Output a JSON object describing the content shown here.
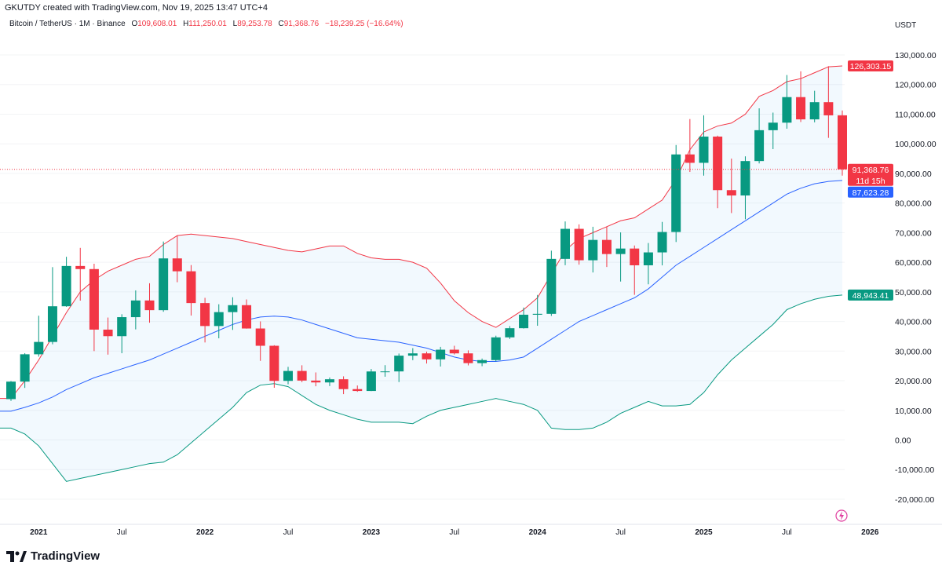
{
  "header": {
    "created": "GKUTDY created with TradingView.com, Nov 19, 2025 13:47 UTC+4",
    "symbol": "Bitcoin / TetherUS · 1M · Binance",
    "open_label": "O",
    "open": "109,608.01",
    "high_label": "H",
    "high": "111,250.01",
    "low_label": "L",
    "low": "89,253.78",
    "close_label": "C",
    "close": "91,368.76",
    "change": "−18,239.25 (−16.64%)"
  },
  "currency": "USDT",
  "brand": "TradingView",
  "colors": {
    "up": "#089981",
    "down": "#F23645",
    "upper_band": "#F23645",
    "basis": "#2962FF",
    "lower_band": "#089981",
    "band_fill": "#2196F3"
  },
  "price_labels": {
    "upper": "126,303.15",
    "last": "91,368.76",
    "countdown": "11d 15h",
    "basis": "87,623.28",
    "lower": "48,943.41"
  },
  "chart_data": {
    "type": "candlestick",
    "interval": "1M",
    "ylim": [
      -25000,
      135000
    ],
    "y_ticks": [
      "130,000.00",
      "120,000.00",
      "110,000.00",
      "100,000.00",
      "90,000.00",
      "80,000.00",
      "70,000.00",
      "60,000.00",
      "50,000.00",
      "40,000.00",
      "30,000.00",
      "20,000.00",
      "10,000.00",
      "0.00",
      "-10,000.00",
      "-20,000.00"
    ],
    "x_ticks": [
      {
        "label": "2021",
        "month": "2021-01"
      },
      {
        "label": "Jul",
        "month": "2021-07"
      },
      {
        "label": "2022",
        "month": "2022-01"
      },
      {
        "label": "Jul",
        "month": "2022-07"
      },
      {
        "label": "2023",
        "month": "2023-01"
      },
      {
        "label": "Jul",
        "month": "2023-07"
      },
      {
        "label": "2024",
        "month": "2024-01"
      },
      {
        "label": "Jul",
        "month": "2024-07"
      },
      {
        "label": "2025",
        "month": "2025-01"
      },
      {
        "label": "Jul",
        "month": "2025-07"
      },
      {
        "label": "2026",
        "month": "2026-01"
      }
    ],
    "months": [
      "2020-11",
      "2020-12",
      "2021-01",
      "2021-02",
      "2021-03",
      "2021-04",
      "2021-05",
      "2021-06",
      "2021-07",
      "2021-08",
      "2021-09",
      "2021-10",
      "2021-11",
      "2021-12",
      "2022-01",
      "2022-02",
      "2022-03",
      "2022-04",
      "2022-05",
      "2022-06",
      "2022-07",
      "2022-08",
      "2022-09",
      "2022-10",
      "2022-11",
      "2022-12",
      "2023-01",
      "2023-02",
      "2023-03",
      "2023-04",
      "2023-05",
      "2023-06",
      "2023-07",
      "2023-08",
      "2023-09",
      "2023-10",
      "2023-11",
      "2023-12",
      "2024-01",
      "2024-02",
      "2024-03",
      "2024-04",
      "2024-05",
      "2024-06",
      "2024-07",
      "2024-08",
      "2024-09",
      "2024-10",
      "2024-11",
      "2024-12",
      "2025-01",
      "2025-02",
      "2025-03",
      "2025-04",
      "2025-05",
      "2025-06",
      "2025-07",
      "2025-08",
      "2025-09",
      "2025-10",
      "2025-11"
    ],
    "ohlc": [
      [
        13791,
        19863,
        13195,
        19695
      ],
      [
        19695,
        29300,
        17572,
        28923
      ],
      [
        28923,
        41950,
        28130,
        33092
      ],
      [
        33092,
        58352,
        32296,
        45135
      ],
      [
        45134,
        61844,
        44950,
        58740
      ],
      [
        58739,
        64854,
        47044,
        57694
      ],
      [
        57697,
        59500,
        30000,
        37253
      ],
      [
        37253,
        41330,
        28805,
        35045
      ],
      [
        35045,
        42448,
        29278,
        41461
      ],
      [
        41461,
        50500,
        37332,
        47100
      ],
      [
        47100,
        52920,
        39600,
        43824
      ],
      [
        43820,
        67000,
        43283,
        61299
      ],
      [
        61300,
        69000,
        53256,
        56950
      ],
      [
        56950,
        59053,
        42000,
        46216
      ],
      [
        46216,
        47990,
        32917,
        38466
      ],
      [
        38466,
        45821,
        34322,
        43160
      ],
      [
        43160,
        48189,
        37155,
        45510
      ],
      [
        45510,
        47444,
        37578,
        37630
      ],
      [
        37630,
        40023,
        26700,
        31801
      ],
      [
        31801,
        31982,
        17622,
        19942
      ],
      [
        19942,
        24668,
        18782,
        23293
      ],
      [
        23296,
        25211,
        19520,
        20050
      ],
      [
        20048,
        22799,
        18125,
        19422
      ],
      [
        19422,
        21085,
        18190,
        20490
      ],
      [
        20491,
        21480,
        15476,
        17164
      ],
      [
        17165,
        18387,
        16256,
        16542
      ],
      [
        16542,
        23960,
        16499,
        23125
      ],
      [
        23125,
        25250,
        21351,
        23141
      ],
      [
        23141,
        29184,
        19549,
        28465
      ],
      [
        28465,
        31000,
        26942,
        29233
      ],
      [
        29233,
        29820,
        25811,
        27210
      ],
      [
        27210,
        31431,
        24800,
        30472
      ],
      [
        30471,
        31804,
        28861,
        29232
      ],
      [
        29232,
        30244,
        25166,
        25941
      ],
      [
        25941,
        27483,
        24901,
        26963
      ],
      [
        26962,
        35198,
        26538,
        34639
      ],
      [
        34640,
        38450,
        34097,
        37723
      ],
      [
        37723,
        44700,
        37615,
        42283
      ],
      [
        42283,
        48969,
        38555,
        42580
      ],
      [
        42580,
        63913,
        41884,
        61130
      ],
      [
        61131,
        73777,
        59005,
        71280
      ],
      [
        71281,
        72797,
        59191,
        60672
      ],
      [
        60672,
        71979,
        56552,
        67540
      ],
      [
        67540,
        71997,
        58402,
        62772
      ],
      [
        62773,
        70080,
        53485,
        64628
      ],
      [
        64628,
        65660,
        49000,
        58973
      ],
      [
        58974,
        66498,
        52550,
        63327
      ],
      [
        63328,
        73620,
        58946,
        70215
      ],
      [
        70216,
        99588,
        66835,
        96408
      ],
      [
        96408,
        108353,
        90500,
        93576
      ],
      [
        93577,
        109588,
        89256,
        102430
      ],
      [
        102430,
        102750,
        78258,
        84350
      ],
      [
        84350,
        95000,
        76606,
        82548
      ],
      [
        82548,
        95758,
        74508,
        94172
      ],
      [
        94172,
        111980,
        93377,
        104591
      ],
      [
        104591,
        110530,
        98200,
        107135
      ],
      [
        107135,
        123218,
        105100,
        115764
      ],
      [
        115764,
        124474,
        107350,
        108246
      ],
      [
        108246,
        117900,
        107255,
        114049
      ],
      [
        114049,
        126199,
        102000,
        109608
      ],
      [
        109608,
        111250,
        89253,
        91368.76
      ]
    ],
    "bollinger_upper": [
      14000,
      20000,
      27000,
      35000,
      43000,
      50000,
      54000,
      57000,
      59000,
      61000,
      62000,
      66000,
      69000,
      69500,
      69000,
      68500,
      68000,
      67000,
      66000,
      65000,
      64000,
      63500,
      64500,
      65500,
      65500,
      63000,
      61500,
      61000,
      61000,
      60000,
      58000,
      53000,
      47000,
      43000,
      40000,
      38000,
      41000,
      44000,
      48000,
      56000,
      64000,
      68000,
      70000,
      72000,
      74000,
      75000,
      78000,
      81000,
      88000,
      98000,
      104000,
      106000,
      107000,
      110000,
      116000,
      118000,
      121000,
      122000,
      124000,
      126000,
      126303.15
    ],
    "bollinger_basis": [
      9700,
      11000,
      12500,
      14500,
      17000,
      19000,
      21000,
      22500,
      24000,
      25500,
      27000,
      29000,
      31000,
      33000,
      35000,
      37000,
      39000,
      40500,
      41500,
      41800,
      41500,
      40500,
      39000,
      37500,
      36000,
      34500,
      34000,
      33500,
      33000,
      32000,
      31000,
      29500,
      28000,
      27000,
      26500,
      26500,
      27000,
      28000,
      31000,
      34000,
      37000,
      40000,
      42000,
      44000,
      46000,
      48000,
      51000,
      55000,
      59000,
      62000,
      65000,
      68000,
      71000,
      74000,
      77000,
      80000,
      83000,
      85000,
      86500,
      87300,
      87623.28
    ],
    "bollinger_lower": [
      4000,
      2000,
      -2000,
      -8000,
      -14000,
      -13000,
      -12000,
      -11000,
      -10000,
      -9000,
      -8000,
      -7500,
      -5000,
      -1000,
      3000,
      7000,
      11000,
      16000,
      18500,
      19000,
      18000,
      15000,
      12000,
      10000,
      8500,
      7000,
      6000,
      6000,
      6000,
      5500,
      8000,
      10000,
      11000,
      12000,
      13000,
      14000,
      13000,
      12000,
      10000,
      4000,
      3500,
      3500,
      4000,
      6000,
      9000,
      11000,
      13000,
      11500,
      11500,
      12000,
      16000,
      22000,
      27000,
      31000,
      35000,
      39000,
      44000,
      46000,
      47500,
      48500,
      48943.41
    ]
  }
}
